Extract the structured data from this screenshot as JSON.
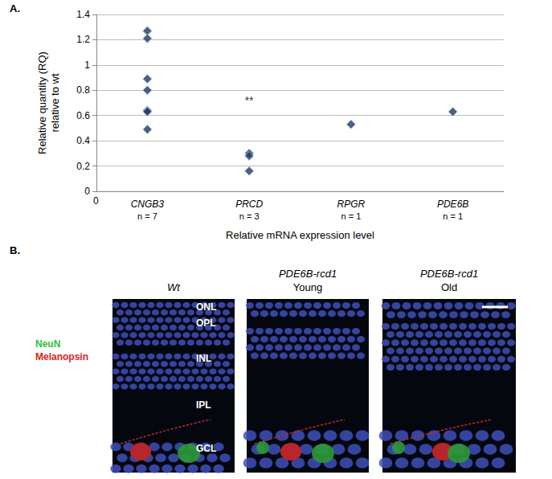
{
  "figure_labels": [
    "A.",
    "B."
  ],
  "chart_data": {
    "type": "scatter",
    "x_label": "Relative mRNA expression level",
    "y_label": [
      "Relative quantity (RQ)",
      "relative to wt"
    ],
    "x_origin_label": "0",
    "categories": [
      "CNGB3",
      "PRCD",
      "RPGR",
      "PDE6B"
    ],
    "category_notes": [
      "n = 7",
      "n = 3",
      "n = 1",
      "n = 1"
    ],
    "values": [
      [
        1.27,
        1.21,
        0.89,
        0.8,
        0.64,
        0.63,
        0.49
      ],
      [
        0.3,
        0.28,
        0.16
      ],
      [
        0.53
      ],
      [
        0.63
      ]
    ],
    "color": "#1f3864",
    "marker": "diamond",
    "ylim": [
      0,
      1.4
    ],
    "yticks": [
      0,
      0.2,
      0.4,
      0.6,
      0.8,
      1,
      1.2,
      1.4
    ],
    "grid": true,
    "annotations": [
      {
        "text": "**",
        "category": "PRCD",
        "y": 0.72
      }
    ]
  },
  "panel_b": {
    "legend": [
      {
        "text": "NeuN",
        "color": "#2fbf3a"
      },
      {
        "text": "Melanopsin",
        "color": "#e0231f"
      }
    ],
    "images": [
      {
        "title": [
          "Wt"
        ],
        "layers": [
          "ONL",
          "OPL",
          "INL",
          "IPL",
          "GCL"
        ]
      },
      {
        "title": [
          "PDE6B-rcd1",
          "Young"
        ],
        "layers": []
      },
      {
        "title": [
          "PDE6B-rcd1",
          "Old"
        ],
        "layers": []
      }
    ]
  }
}
